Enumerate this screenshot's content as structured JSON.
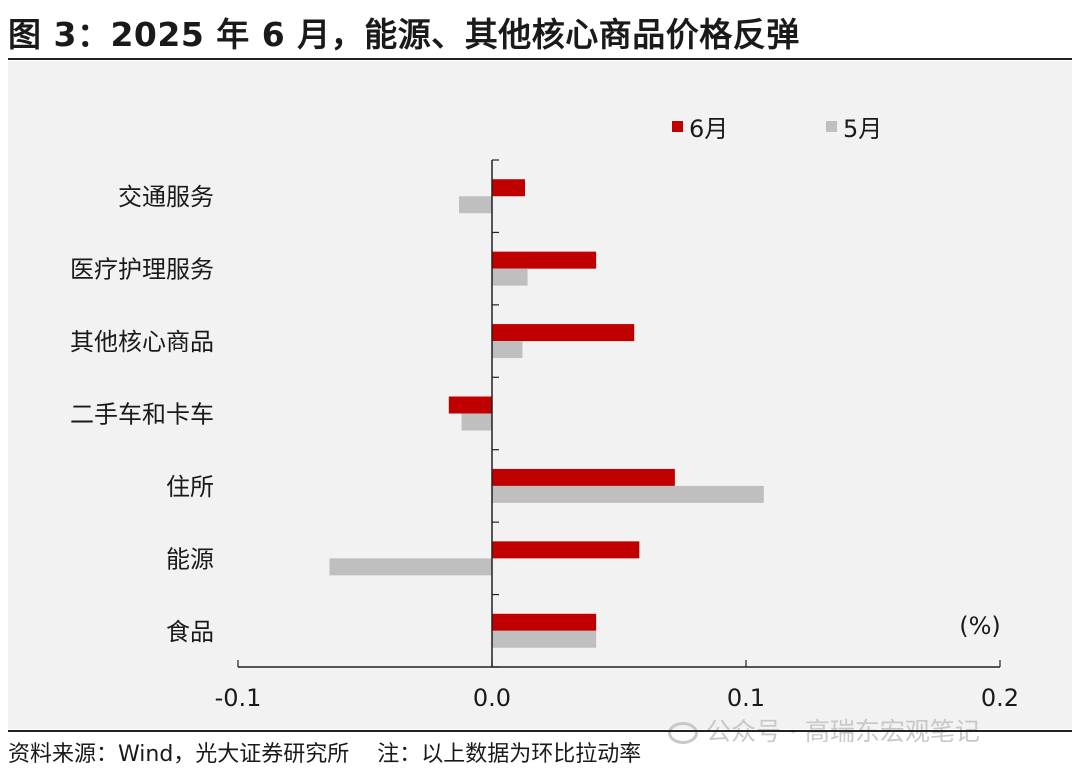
{
  "title": "图 3：2025 年 6 月，能源、其他核心商品价格反弹",
  "chart_data": {
    "type": "bar",
    "orientation": "horizontal",
    "categories": [
      "交通服务",
      "医疗护理服务",
      "其他核心商品",
      "二手车和卡车",
      "住所",
      "能源",
      "食品"
    ],
    "series": [
      {
        "name": "6月",
        "color": "#c00000",
        "values": [
          0.013,
          0.041,
          0.056,
          -0.017,
          0.072,
          0.058,
          0.041
        ]
      },
      {
        "name": "5月",
        "color": "#bfbfbf",
        "values": [
          -0.013,
          0.014,
          0.012,
          -0.012,
          0.107,
          -0.064,
          0.041
        ]
      }
    ],
    "xlim": [
      -0.1,
      0.2
    ],
    "xticks": [
      "-0.1",
      "0.0",
      "0.1",
      "0.2"
    ],
    "unit_label": "(%)",
    "legend_position": "top-right",
    "grid": false
  },
  "footer": {
    "source": "资料来源：Wind，光大证券研究所",
    "note": "注：以上数据为环比拉动率"
  },
  "watermark": "公众号 · 高瑞东宏观笔记"
}
